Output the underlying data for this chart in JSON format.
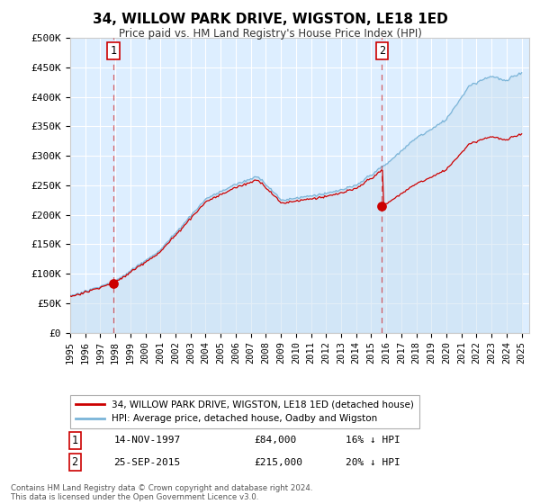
{
  "title": "34, WILLOW PARK DRIVE, WIGSTON, LE18 1ED",
  "subtitle": "Price paid vs. HM Land Registry's House Price Index (HPI)",
  "sale1_date": "14-NOV-1997",
  "sale1_price": 84000,
  "sale1_label": "16% ↓ HPI",
  "sale1_year": 1997.87,
  "sale2_date": "25-SEP-2015",
  "sale2_price": 215000,
  "sale2_label": "20% ↓ HPI",
  "sale2_year": 2015.72,
  "legend_house": "34, WILLOW PARK DRIVE, WIGSTON, LE18 1ED (detached house)",
  "legend_hpi": "HPI: Average price, detached house, Oadby and Wigston",
  "footnote": "Contains HM Land Registry data © Crown copyright and database right 2024.\nThis data is licensed under the Open Government Licence v3.0.",
  "hpi_color": "#7ab4d8",
  "sale_color": "#cc0000",
  "dashed_color": "#cc0000",
  "bg_color": "#ddeeff",
  "ylim_min": 0,
  "ylim_max": 500000,
  "xlim_min": 1995,
  "xlim_max": 2025.5,
  "yticks": [
    0,
    50000,
    100000,
    150000,
    200000,
    250000,
    300000,
    350000,
    400000,
    450000,
    500000
  ],
  "ytick_labels": [
    "£0",
    "£50K",
    "£100K",
    "£150K",
    "£200K",
    "£250K",
    "£300K",
    "£350K",
    "£400K",
    "£450K",
    "£500K"
  ],
  "xticks": [
    1995,
    1996,
    1997,
    1998,
    1999,
    2000,
    2001,
    2002,
    2003,
    2004,
    2005,
    2006,
    2007,
    2008,
    2009,
    2010,
    2011,
    2012,
    2013,
    2014,
    2015,
    2016,
    2017,
    2018,
    2019,
    2020,
    2021,
    2022,
    2023,
    2024,
    2025
  ]
}
